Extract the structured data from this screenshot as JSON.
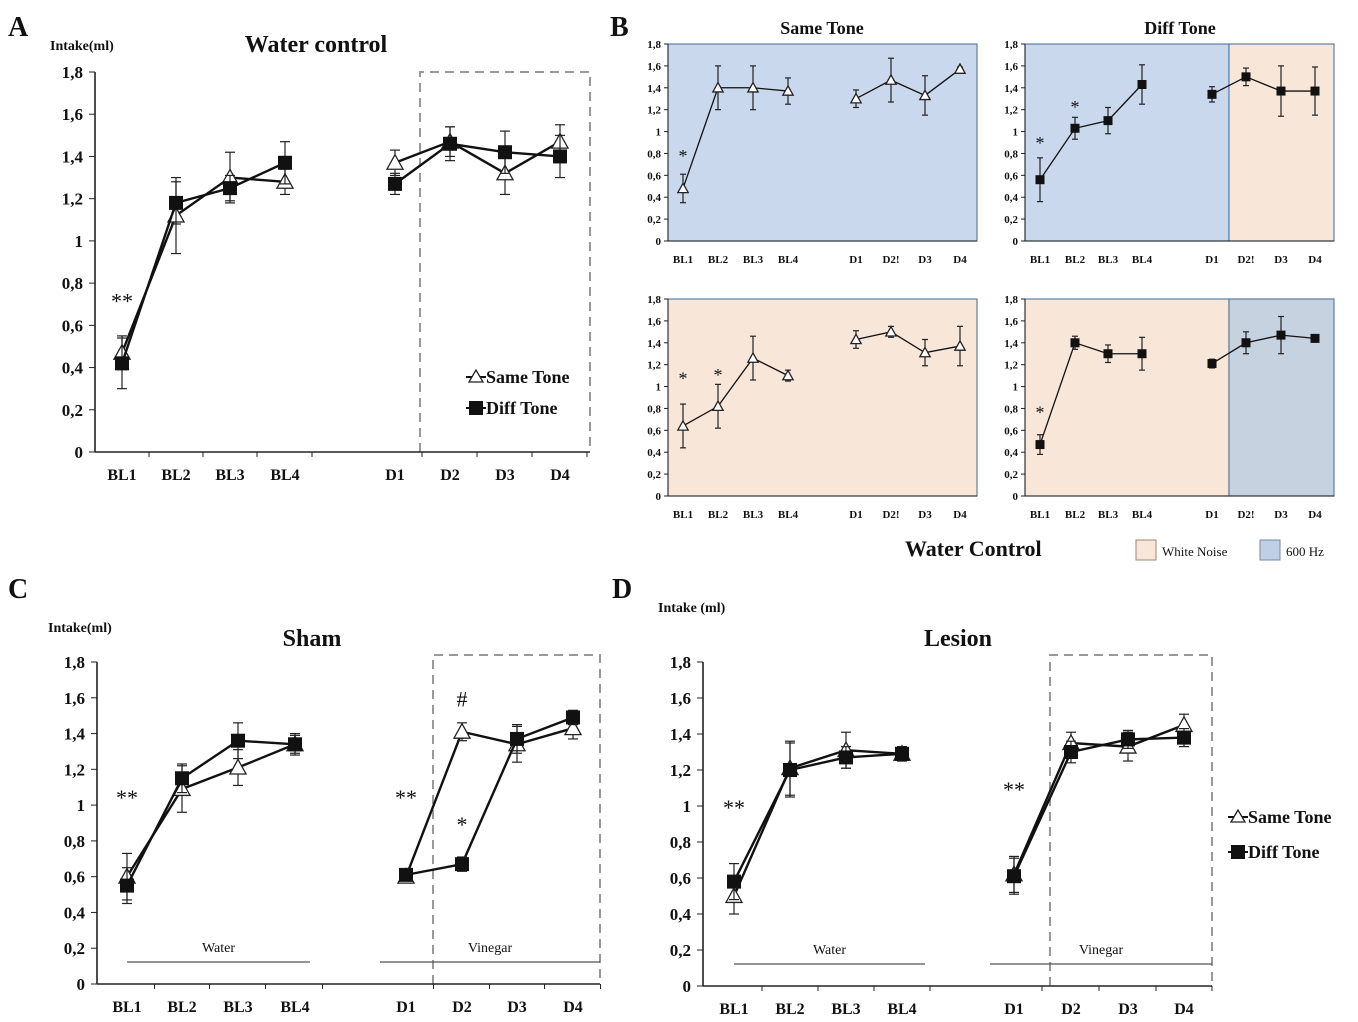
{
  "figure": {
    "panel_letters": [
      "A",
      "B",
      "C",
      "D"
    ],
    "b_bottom_title": "Water Control",
    "b_legend": [
      {
        "label": "White Noise",
        "color": "#f8e6d8"
      },
      {
        "label": "600 Hz",
        "color": "#bfcfe6"
      }
    ],
    "colors": {
      "blue_bg": "#c9d8ec",
      "peach_bg": "#f8e6d8",
      "gray_blue_bg": "#c6d2e0"
    }
  },
  "chart_data": [
    {
      "id": "A",
      "type": "line",
      "title": "Water control",
      "ylabel": "Intake(ml)",
      "ylim": [
        0,
        1.8
      ],
      "yticks": [
        "0",
        "0,2",
        "0,4",
        "0,6",
        "0,8",
        "1",
        "1,2",
        "1,4",
        "1,6",
        "1,8"
      ],
      "categories": [
        "BL1",
        "BL2",
        "BL3",
        "BL4",
        "D1",
        "D2",
        "D3",
        "D4"
      ],
      "segments": [
        [
          0,
          3
        ],
        [
          4,
          7
        ]
      ],
      "series": [
        {
          "name": "Same Tone",
          "marker": "triangle",
          "values": [
            0.47,
            1.12,
            1.3,
            1.28,
            1.37,
            1.47,
            1.32,
            1.47
          ],
          "errors": [
            0.08,
            0.18,
            0.12,
            0.06,
            0.06,
            0.07,
            0.1,
            0.08
          ]
        },
        {
          "name": "Diff Tone",
          "marker": "square",
          "values": [
            0.42,
            1.18,
            1.25,
            1.37,
            1.27,
            1.46,
            1.42,
            1.4
          ],
          "errors": [
            0.12,
            0.1,
            0.06,
            0.1,
            0.05,
            0.08,
            0.1,
            0.1
          ]
        }
      ],
      "annotations": [
        {
          "text": "**",
          "x": 0,
          "y": 0.68
        }
      ],
      "dashed_box_from": 4.5
    },
    {
      "id": "B1",
      "type": "line",
      "title": "Same Tone",
      "ylim": [
        0,
        1.8
      ],
      "yticks": [
        "0",
        "0,2",
        "0,4",
        "0,6",
        "0,8",
        "1",
        "1,2",
        "1,4",
        "1,6",
        "1,8"
      ],
      "categories": [
        "BL1",
        "BL2",
        "BL3",
        "BL4",
        "D1",
        "D2!",
        "D3",
        "D4"
      ],
      "segments": [
        [
          0,
          3
        ],
        [
          4,
          7
        ]
      ],
      "background": [
        {
          "from": 0,
          "to": 8,
          "color": "blue_bg"
        }
      ],
      "series": [
        {
          "name": "",
          "marker": "triangle",
          "values": [
            0.48,
            1.4,
            1.4,
            1.37,
            1.3,
            1.47,
            1.33,
            1.57
          ],
          "errors": [
            0.13,
            0.2,
            0.2,
            0.12,
            0.08,
            0.2,
            0.18,
            0.02
          ]
        }
      ],
      "annotations": [
        {
          "text": "*",
          "x": 0,
          "y": 0.72
        }
      ]
    },
    {
      "id": "B2",
      "type": "line",
      "title": "Diff Tone",
      "ylim": [
        0,
        1.8
      ],
      "yticks": [
        "0",
        "0,2",
        "0,4",
        "0,6",
        "0,8",
        "1",
        "1,2",
        "1,4",
        "1,6",
        "1,8"
      ],
      "categories": [
        "BL1",
        "BL2",
        "BL3",
        "BL4",
        "D1",
        "D2!",
        "D3",
        "D4"
      ],
      "segments": [
        [
          0,
          3
        ],
        [
          4,
          7
        ]
      ],
      "background": [
        {
          "from": 0,
          "to": 5,
          "color": "blue_bg"
        },
        {
          "from": 5,
          "to": 8,
          "color": "peach_bg"
        }
      ],
      "series": [
        {
          "name": "",
          "marker": "square",
          "values": [
            0.56,
            1.03,
            1.1,
            1.43,
            1.34,
            1.5,
            1.37,
            1.37
          ],
          "errors": [
            0.2,
            0.1,
            0.12,
            0.18,
            0.07,
            0.08,
            0.23,
            0.22
          ]
        }
      ],
      "annotations": [
        {
          "text": "*",
          "x": 0,
          "y": 0.84
        },
        {
          "text": "*",
          "x": 1,
          "y": 1.17
        }
      ]
    },
    {
      "id": "B3",
      "type": "line",
      "title": "",
      "ylim": [
        0,
        1.8
      ],
      "yticks": [
        "0",
        "0,2",
        "0,4",
        "0,6",
        "0,8",
        "1",
        "1,2",
        "1,4",
        "1,6",
        "1,8"
      ],
      "categories": [
        "BL1",
        "BL2",
        "BL3",
        "BL4",
        "D1",
        "D2!",
        "D3",
        "D4"
      ],
      "segments": [
        [
          0,
          3
        ],
        [
          4,
          7
        ]
      ],
      "background": [
        {
          "from": 0,
          "to": 8,
          "color": "peach_bg"
        }
      ],
      "series": [
        {
          "name": "",
          "marker": "triangle",
          "values": [
            0.64,
            0.82,
            1.26,
            1.1,
            1.43,
            1.5,
            1.31,
            1.37
          ],
          "errors": [
            0.2,
            0.2,
            0.2,
            0.05,
            0.08,
            0.05,
            0.12,
            0.18
          ]
        }
      ],
      "annotations": [
        {
          "text": "*",
          "x": 0,
          "y": 1.02
        },
        {
          "text": "*",
          "x": 1,
          "y": 1.05
        }
      ]
    },
    {
      "id": "B4",
      "type": "line",
      "title": "",
      "ylim": [
        0,
        1.8
      ],
      "yticks": [
        "0",
        "0,2",
        "0,4",
        "0,6",
        "0,8",
        "1",
        "1,2",
        "1,4",
        "1,6",
        "1,8"
      ],
      "categories": [
        "BL1",
        "BL2",
        "BL3",
        "BL4",
        "D1",
        "D2!",
        "D3",
        "D4"
      ],
      "segments": [
        [
          0,
          3
        ],
        [
          4,
          7
        ]
      ],
      "background": [
        {
          "from": 0,
          "to": 5,
          "color": "peach_bg"
        },
        {
          "from": 5,
          "to": 8,
          "color": "gray_blue_bg"
        }
      ],
      "series": [
        {
          "name": "",
          "marker": "square",
          "values": [
            0.47,
            1.4,
            1.3,
            1.3,
            1.21,
            1.4,
            1.47,
            1.44
          ],
          "errors": [
            0.09,
            0.06,
            0.08,
            0.15,
            0.04,
            0.1,
            0.17,
            0.02
          ]
        }
      ],
      "annotations": [
        {
          "text": "*",
          "x": 0,
          "y": 0.71
        }
      ]
    },
    {
      "id": "C",
      "type": "line",
      "title": "Sham",
      "ylabel": "Intake(ml)",
      "ylim": [
        0,
        1.8
      ],
      "yticks": [
        "0",
        "0,2",
        "0,4",
        "0,6",
        "0,8",
        "1",
        "1,2",
        "1,4",
        "1,6",
        "1,8"
      ],
      "categories": [
        "BL1",
        "BL2",
        "BL3",
        "BL4",
        "D1",
        "D2",
        "D3",
        "D4"
      ],
      "segments": [
        [
          0,
          3
        ],
        [
          4,
          7
        ]
      ],
      "series": [
        {
          "name": "Same Tone",
          "marker": "triangle",
          "values": [
            0.6,
            1.09,
            1.21,
            1.34,
            0.6,
            1.41,
            1.34,
            1.43
          ],
          "errors": [
            0.13,
            0.13,
            0.1,
            0.05,
            0.03,
            0.05,
            0.1,
            0.06
          ]
        },
        {
          "name": "Diff Tone",
          "marker": "square",
          "values": [
            0.55,
            1.15,
            1.36,
            1.34,
            0.61,
            0.67,
            1.37,
            1.49
          ],
          "errors": [
            0.1,
            0.08,
            0.1,
            0.06,
            0.03,
            0.04,
            0.08,
            0.04
          ]
        }
      ],
      "annotations": [
        {
          "text": "**",
          "x": 0,
          "y": 1.0
        },
        {
          "text": "**",
          "x": 4,
          "y": 1.0
        },
        {
          "text": "*",
          "x": 5,
          "y": 0.85
        },
        {
          "text": "#",
          "x": 5,
          "y": 1.55
        }
      ],
      "phase_labels": [
        {
          "text": "Water",
          "from": 0,
          "to": 3
        },
        {
          "text": "Vinegar",
          "from": 4,
          "to": 7
        }
      ],
      "dashed_box_from": 4.5
    },
    {
      "id": "D",
      "type": "line",
      "title": "Lesion",
      "ylabel": "Intake (ml)",
      "ylim": [
        0,
        1.8
      ],
      "yticks": [
        "0",
        "0,2",
        "0,4",
        "0,6",
        "0,8",
        "1",
        "1,2",
        "1,4",
        "1,6",
        "1,8"
      ],
      "categories": [
        "BL1",
        "BL2",
        "BL3",
        "BL4",
        "D1",
        "D2",
        "D3",
        "D4"
      ],
      "segments": [
        [
          0,
          3
        ],
        [
          4,
          7
        ]
      ],
      "series": [
        {
          "name": "Same Tone",
          "marker": "triangle",
          "values": [
            0.5,
            1.21,
            1.31,
            1.29,
            0.62,
            1.35,
            1.33,
            1.45
          ],
          "errors": [
            0.1,
            0.15,
            0.1,
            0.04,
            0.1,
            0.06,
            0.08,
            0.06
          ]
        },
        {
          "name": "Diff Tone",
          "marker": "square",
          "values": [
            0.58,
            1.2,
            1.27,
            1.29,
            0.61,
            1.3,
            1.37,
            1.38
          ],
          "errors": [
            0.1,
            0.15,
            0.06,
            0.04,
            0.1,
            0.06,
            0.05,
            0.05
          ]
        }
      ],
      "annotations": [
        {
          "text": "**",
          "x": 0,
          "y": 0.95
        },
        {
          "text": "**",
          "x": 4,
          "y": 1.05
        }
      ],
      "phase_labels": [
        {
          "text": "Water",
          "from": 0,
          "to": 3
        },
        {
          "text": "Vinegar",
          "from": 4,
          "to": 7
        }
      ],
      "dashed_box_from": 4.5
    }
  ]
}
